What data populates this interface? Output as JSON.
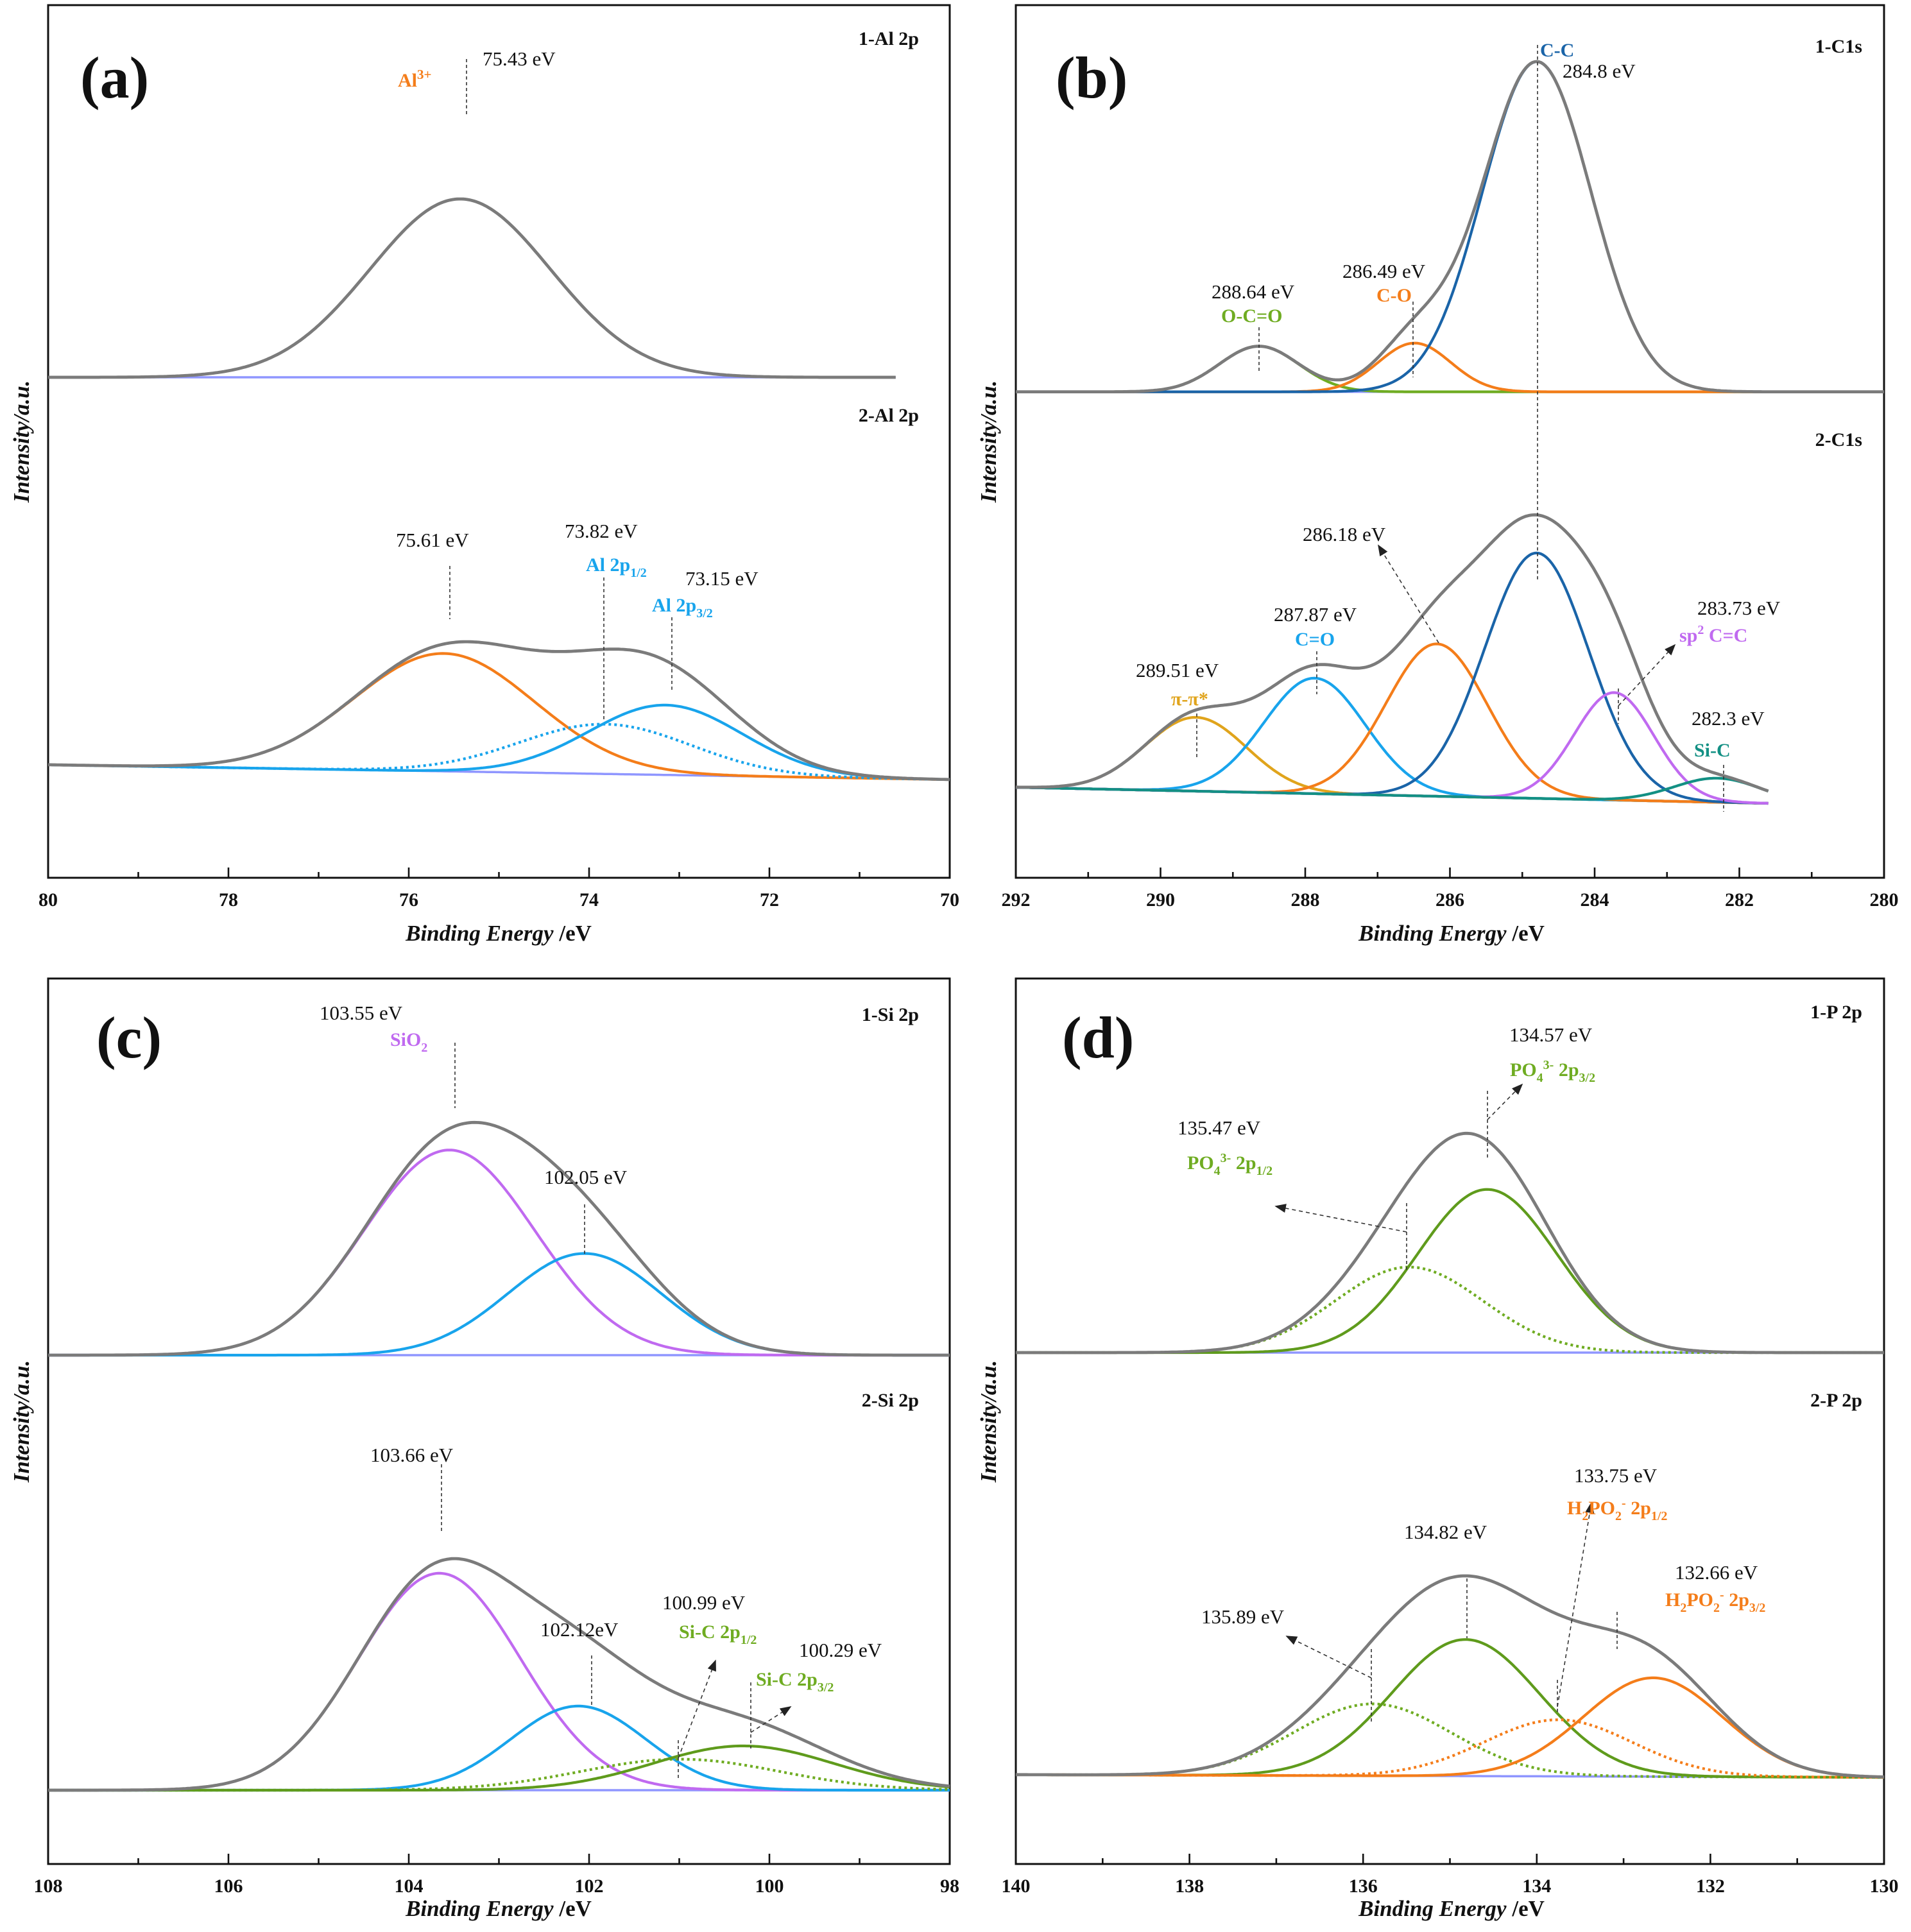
{
  "colors": {
    "gray": "#7b7b7b",
    "baseline": "#8f96ff",
    "orange": "#f47d1a",
    "lightblue": "#18a4ec",
    "darkblue": "#1a64a8",
    "green": "#6fac22",
    "olive": "#5f9b1c",
    "purple": "#c06af0",
    "gold": "#e0a41c",
    "teal": "#139084"
  },
  "chart_data": [
    {
      "type": "line",
      "panel_label": "(a)",
      "xlabel_italic": "Binding Energy",
      "xlabel_unit": " /eV",
      "ylabel": "Intensity/a.u.",
      "xlim": [
        80,
        70
      ],
      "xticks": [
        "80",
        "78",
        "76",
        "74",
        "72",
        "70"
      ],
      "spectra": [
        {
          "name": "1-Al 2p",
          "x_range": [
            80,
            70.6
          ],
          "baseline": 0.5,
          "components": [
            {
              "center": 75.43,
              "amp": 20.0,
              "sigma": 1.0,
              "color": "gray"
            }
          ]
        },
        {
          "name": "2-Al 2p",
          "x_range": [
            80,
            70
          ],
          "baseline": [
            1.7,
            0.0
          ],
          "components": [
            {
              "center": 75.61,
              "amp": 13.5,
              "sigma": 1.0,
              "color": "orange"
            },
            {
              "center": 73.82,
              "amp": 5.7,
              "sigma": 0.95,
              "color": "lightblue",
              "dotted": true
            },
            {
              "center": 73.15,
              "amp": 8.0,
              "sigma": 0.85,
              "color": "lightblue"
            }
          ]
        }
      ],
      "annotations": [
        {
          "value": "75.43 eV",
          "name": "Al³⁺",
          "color": "orange"
        },
        {
          "value": "75.61 eV"
        },
        {
          "value": "73.82 eV",
          "name": "Al 2p1/2",
          "color": "lightblue"
        },
        {
          "value": "73.15 eV",
          "name": "Al 2p3/2",
          "color": "lightblue"
        }
      ]
    },
    {
      "type": "line",
      "panel_label": "(b)",
      "xlabel_italic": "Binding Energy",
      "xlabel_unit": " /eV",
      "ylabel": "Intensity/a.u.",
      "xlim": [
        292,
        280
      ],
      "xticks": [
        "292",
        "290",
        "288",
        "286",
        "284",
        "282",
        "280"
      ],
      "spectra": [
        {
          "name": "1-C1s",
          "x_range": [
            292,
            280
          ],
          "baseline": 0.3,
          "components": [
            {
              "center": 288.64,
              "amp": 2.9,
              "sigma": 0.55,
              "color": "green"
            },
            {
              "center": 286.49,
              "amp": 3.1,
              "sigma": 0.5,
              "color": "orange"
            },
            {
              "center": 284.8,
              "amp": 21.0,
              "sigma": 0.75,
              "color": "darkblue"
            }
          ]
        },
        {
          "name": "2-C1s",
          "x_range": [
            292,
            281.6
          ],
          "baseline": [
            1.0,
            0.0
          ],
          "components": [
            {
              "center": 289.51,
              "amp": 4.6,
              "sigma": 0.7,
              "color": "gold"
            },
            {
              "center": 287.87,
              "amp": 7.2,
              "sigma": 0.7,
              "color": "lightblue"
            },
            {
              "center": 286.18,
              "amp": 9.5,
              "sigma": 0.7,
              "color": "orange"
            },
            {
              "center": 284.8,
              "amp": 15.3,
              "sigma": 0.72,
              "color": "darkblue"
            },
            {
              "center": 283.73,
              "amp": 6.7,
              "sigma": 0.55,
              "color": "purple"
            },
            {
              "center": 282.3,
              "amp": 1.5,
              "sigma": 0.6,
              "color": "teal"
            }
          ]
        }
      ],
      "annotations": [
        {
          "value": "284.8 eV",
          "name": "C-C",
          "color": "darkblue"
        },
        {
          "value": "288.64 eV",
          "name": "O-C=O",
          "color": "green"
        },
        {
          "value": "286.49 eV",
          "name": "C-O",
          "color": "orange"
        },
        {
          "value": "286.18 eV"
        },
        {
          "value": "287.87 eV",
          "name": "C=O",
          "color": "lightblue"
        },
        {
          "value": "289.51 eV",
          "name": "π-π*",
          "color": "gold"
        },
        {
          "value": "283.73 eV",
          "name": "sp2 C=C",
          "color": "purple"
        },
        {
          "value": "282.3 eV",
          "name": "Si-C",
          "color": "teal"
        }
      ]
    },
    {
      "type": "line",
      "panel_label": "(c)",
      "xlabel_italic": "Binding Energy",
      "xlabel_unit": " /eV",
      "ylabel": "Intensity/a.u.",
      "xlim": [
        108,
        98
      ],
      "xticks": [
        "108",
        "106",
        "104",
        "102",
        "100",
        "98"
      ],
      "spectra": [
        {
          "name": "1-Si 2p",
          "x_range": [
            108,
            98
          ],
          "baseline": 0.0,
          "components": [
            {
              "center": 103.55,
              "amp": 23.0,
              "sigma": 0.95,
              "color": "purple"
            },
            {
              "center": 102.05,
              "amp": 11.4,
              "sigma": 0.85,
              "color": "lightblue"
            }
          ]
        },
        {
          "name": "2-Si 2p",
          "x_range": [
            108,
            98
          ],
          "baseline": 0.0,
          "components": [
            {
              "center": 103.66,
              "amp": 24.5,
              "sigma": 0.9,
              "color": "purple"
            },
            {
              "center": 102.12,
              "amp": 9.5,
              "sigma": 0.75,
              "color": "lightblue"
            },
            {
              "center": 100.99,
              "amp": 3.5,
              "sigma": 1.1,
              "color": "green",
              "dotted": true
            },
            {
              "center": 100.29,
              "amp": 5.0,
              "sigma": 1.0,
              "color": "olive"
            }
          ]
        }
      ],
      "annotations": [
        {
          "value": "103.55 eV",
          "name": "SiO2",
          "color": "purple"
        },
        {
          "value": "102.05 eV"
        },
        {
          "value": "103.66 eV"
        },
        {
          "value": "102.12eV"
        },
        {
          "value": "100.99 eV",
          "name": "Si-C 2p1/2",
          "color": "green"
        },
        {
          "value": "100.29 eV",
          "name": "Si-C 2p3/2",
          "color": "green"
        }
      ]
    },
    {
      "type": "line",
      "panel_label": "(d)",
      "xlabel_italic": "Binding Energy",
      "xlabel_unit": " /eV",
      "ylabel": "Intensity/a.u.",
      "xlim": [
        140,
        130
      ],
      "xticks": [
        "140",
        "138",
        "136",
        "134",
        "132",
        "130"
      ],
      "spectra": [
        {
          "name": "1-P 2p",
          "x_range": [
            140,
            130
          ],
          "baseline": 0.0,
          "components": [
            {
              "center": 135.47,
              "amp": 9.8,
              "sigma": 0.85,
              "color": "green",
              "dotted": true
            },
            {
              "center": 134.57,
              "amp": 18.7,
              "sigma": 0.8,
              "color": "olive"
            }
          ]
        },
        {
          "name": "2-P 2p",
          "x_range": [
            140,
            130
          ],
          "baseline": [
            0.3,
            0.0
          ],
          "components": [
            {
              "center": 135.89,
              "amp": 8.0,
              "sigma": 0.9,
              "color": "green",
              "dotted": true
            },
            {
              "center": 134.82,
              "amp": 15.2,
              "sigma": 0.85,
              "color": "olive"
            },
            {
              "center": 133.75,
              "amp": 6.3,
              "sigma": 0.85,
              "color": "orange",
              "dotted": true
            },
            {
              "center": 132.66,
              "amp": 11.0,
              "sigma": 0.8,
              "color": "orange"
            }
          ]
        }
      ],
      "annotations": [
        {
          "value": "134.57 eV",
          "name": "PO4 3- 2p3/2",
          "color": "green"
        },
        {
          "value": "135.47 eV",
          "name": "PO4 3- 2p1/2",
          "color": "green"
        },
        {
          "value": "133.75 eV",
          "name": "H2PO2 - 2p1/2",
          "color": "orange"
        },
        {
          "value": "134.82 eV"
        },
        {
          "value": "132.66 eV",
          "name": "H2PO2 - 2p3/2",
          "color": "orange"
        },
        {
          "value": "135.89 eV"
        }
      ]
    }
  ]
}
